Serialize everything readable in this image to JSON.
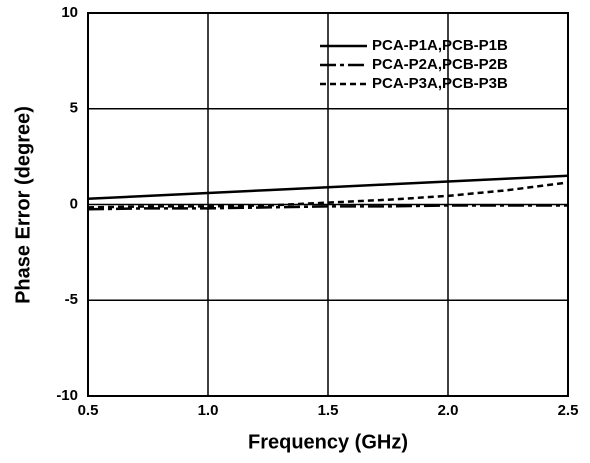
{
  "chart_data": {
    "type": "line",
    "x_label": "Frequency (GHz)",
    "y_label": "Phase Error (degree)",
    "x": [
      0.5,
      0.75,
      1.0,
      1.25,
      1.5,
      1.75,
      2.0,
      2.25,
      2.5
    ],
    "series": [
      {
        "name": "PCA-P1A,PCB-P1B",
        "color": "#000000",
        "dash": "solid",
        "values": [
          0.3,
          0.45,
          0.6,
          0.75,
          0.9,
          1.05,
          1.2,
          1.35,
          1.5
        ]
      },
      {
        "name": "PCA-P2A,PCB-P2B",
        "color": "#000000",
        "dash": "dash-dot",
        "values": [
          -0.25,
          -0.2,
          -0.2,
          -0.15,
          -0.1,
          -0.1,
          -0.05,
          -0.05,
          -0.05
        ]
      },
      {
        "name": "PCA-P3A,PCB-P3B",
        "color": "#000000",
        "dash": "dashed",
        "values": [
          -0.15,
          -0.1,
          -0.1,
          -0.05,
          0.1,
          0.25,
          0.45,
          0.75,
          1.15
        ]
      }
    ],
    "xlim": [
      0.5,
      2.5
    ],
    "xticks": [
      0.5,
      {
        "value": 1.0,
        "label": "1.0"
      },
      1.5,
      {
        "value": 2.0,
        "label": "2.0"
      },
      2.5
    ],
    "ylim": [
      -10,
      10
    ],
    "yticks": [
      -10,
      -5,
      0,
      5,
      10
    ],
    "grid": true,
    "legend": "top-right"
  }
}
